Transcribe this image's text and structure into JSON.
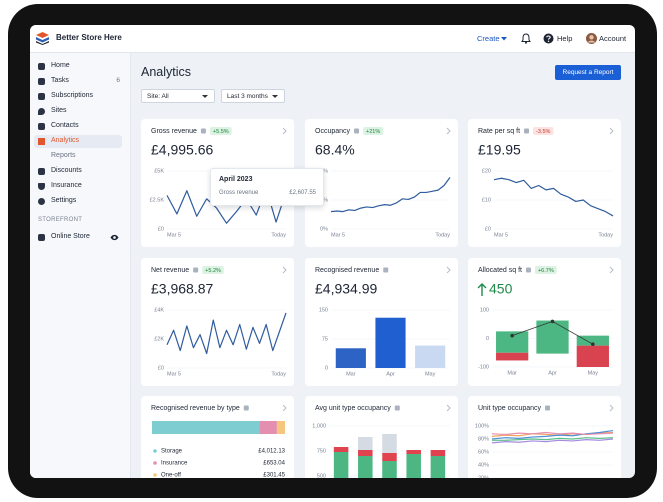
{
  "app": {
    "name": "Better Store Here"
  },
  "topbar": {
    "create": "Create",
    "help": "Help",
    "account": "Account"
  },
  "sidebar": {
    "items": [
      {
        "label": "Home"
      },
      {
        "label": "Tasks",
        "count": 6
      },
      {
        "label": "Subscriptions"
      },
      {
        "label": "Sites"
      },
      {
        "label": "Contacts"
      },
      {
        "label": "Analytics"
      },
      {
        "label": "Reports"
      },
      {
        "label": "Discounts"
      },
      {
        "label": "Insurance"
      },
      {
        "label": "Settings"
      }
    ],
    "section": "STOREFRONT",
    "storefront_item": "Online Store"
  },
  "page": {
    "title": "Analytics",
    "button": "Request a Report",
    "filters": [
      "Site: All",
      "Last 3 months"
    ]
  },
  "tooltip": {
    "title": "April 2023",
    "label": "Gross revenue",
    "value": "£2,607.55"
  },
  "cards": [
    {
      "title": "Gross revenue",
      "badge": {
        "text": "+5.5%",
        "tone": "up"
      },
      "value": "£4,995.66",
      "chart": {
        "type": "line",
        "color": "#2f5c9e",
        "ylim": [
          0,
          5000
        ],
        "yticks": [
          {
            "value": 0,
            "label": "£0"
          },
          {
            "value": 2500,
            "label": "£2.5K"
          },
          {
            "value": 5000,
            "label": "£5K"
          }
        ],
        "x_labels": [
          "Mar 5",
          "Today"
        ],
        "values": [
          2900,
          1300,
          3300,
          1100,
          2600,
          1800,
          500,
          1500,
          2600,
          1200,
          3500,
          600,
          3200
        ]
      }
    },
    {
      "title": "Occupancy",
      "badge": {
        "text": "+21%",
        "tone": "up"
      },
      "value": "68.4%",
      "chart": {
        "type": "line",
        "color": "#2f5c9e",
        "ylim": [
          0,
          100
        ],
        "yticks": [
          {
            "value": 0,
            "label": "0%"
          },
          {
            "value": 50,
            "label": "50%"
          },
          {
            "value": 100,
            "label": "100%"
          }
        ],
        "x_labels": [
          "Mar 5",
          "Today"
        ],
        "values": [
          30,
          31,
          30,
          33,
          32,
          36,
          38,
          37,
          40,
          42,
          41,
          45,
          52,
          51,
          55,
          63,
          63,
          65,
          67,
          75,
          89
        ]
      }
    },
    {
      "title": "Rate per sq ft",
      "badge": {
        "text": "-3.5%",
        "tone": "down"
      },
      "value": "£19.95",
      "chart": {
        "type": "line",
        "color": "#2f5c9e",
        "ylim": [
          0,
          20
        ],
        "yticks": [
          {
            "value": 0,
            "label": "£0"
          },
          {
            "value": 10,
            "label": "£10"
          },
          {
            "value": 20,
            "label": "£20"
          }
        ],
        "x_labels": [
          "Mar 5",
          "Today"
        ],
        "values": [
          17,
          17.5,
          17,
          16,
          16.8,
          14,
          15,
          13.5,
          14,
          12,
          11,
          9.5,
          10,
          8,
          7,
          6,
          4.5
        ]
      }
    },
    {
      "title": "Net revenue",
      "badge": {
        "text": "+5.2%",
        "tone": "up"
      },
      "value": "£3,968.87",
      "chart": {
        "type": "line",
        "color": "#2f5c9e",
        "ylim": [
          0,
          4000
        ],
        "yticks": [
          {
            "value": 0,
            "label": "£0"
          },
          {
            "value": 2000,
            "label": "£2K"
          },
          {
            "value": 4000,
            "label": "£4K"
          }
        ],
        "x_labels": [
          "Mar 5",
          "Today"
        ],
        "values": [
          1600,
          2600,
          1200,
          2900,
          1400,
          2300,
          1000,
          3300,
          1400,
          2600,
          1600,
          3000,
          1300,
          2800,
          1700,
          3000,
          1200,
          2500,
          3800
        ]
      }
    },
    {
      "title": "Recognised revenue",
      "value": "£4,934.99",
      "chart": {
        "type": "bar",
        "ylim": [
          0,
          150
        ],
        "yticks": [
          0,
          75,
          150
        ],
        "categories": [
          "Mar",
          "Apr",
          "May"
        ],
        "values": [
          51,
          130,
          58
        ],
        "colors": [
          "#2d63c4",
          "#1f5fd0",
          "#c9d9f1"
        ]
      }
    },
    {
      "title": "Allocated sq ft",
      "badge": {
        "text": "+6.7%",
        "tone": "up"
      },
      "value": "450",
      "trend": "up",
      "value_color": "#1f8a4c",
      "chart": {
        "type": "waterfall",
        "ylim": [
          -100,
          100
        ],
        "yticks": [
          -100,
          0,
          100
        ],
        "categories": [
          "Mar",
          "Apr",
          "May"
        ],
        "series": [
          {
            "color": "#4cb782",
            "low": [
              -50,
              -53,
              -25
            ],
            "high": [
              25,
              63,
              10
            ]
          },
          {
            "color": "#d8434f",
            "low": [
              -77,
              null,
              -100
            ],
            "high": [
              -50,
              null,
              -25
            ]
          }
        ],
        "line": {
          "color": "#333333",
          "values": [
            10,
            60,
            -20
          ]
        }
      }
    },
    {
      "title": "Recognised revenue by type",
      "chart": {
        "type": "hbar_stack",
        "names": [
          "Storage",
          "Insurance",
          "One-off"
        ],
        "values": [
          4012.13,
          653.04,
          301.45
        ],
        "value_labels": [
          "£4,012.13",
          "£653.04",
          "£301.45"
        ],
        "colors": [
          "#7ecdd1",
          "#e58fb0",
          "#f5c77e"
        ]
      }
    },
    {
      "title": "Avg unit type occupancy",
      "chart": {
        "type": "stacked_bar",
        "ylim": [
          0,
          1000
        ],
        "yticks": [
          {
            "value": 1000,
            "label": "1,000"
          },
          750,
          500
        ],
        "series": [
          {
            "color": "#4cb782",
            "values": [
              740,
              700,
              650,
              720,
              700
            ]
          },
          {
            "color": "#e0434f",
            "values": [
              50,
              60,
              80,
              40,
              60
            ]
          },
          {
            "color": "#d5dbe3",
            "values": [
              0,
              130,
              190,
              0,
              0
            ]
          }
        ]
      }
    },
    {
      "title": "Unit type occupancy",
      "chart": {
        "type": "multiline",
        "ylim": [
          0,
          100
        ],
        "yticks": [
          {
            "value": 100,
            "label": "100%"
          },
          {
            "value": 80,
            "label": "80%"
          },
          {
            "value": 60,
            "label": "60%"
          },
          {
            "value": 40,
            "label": "40%"
          },
          {
            "value": 20,
            "label": "20%"
          }
        ],
        "series": [
          {
            "color": "#f0a35e",
            "values": [
              84,
              86,
              85,
              88,
              87,
              86,
              88,
              87,
              89,
              90
            ]
          },
          {
            "color": "#4d8fd6",
            "values": [
              80,
              82,
              81,
              83,
              84,
              86,
              85,
              88,
              90,
              93
            ]
          },
          {
            "color": "#5cbf8a",
            "values": [
              78,
              78,
              79,
              80,
              79,
              81,
              80,
              82,
              81,
              82
            ]
          },
          {
            "color": "#e58fb0",
            "values": [
              88,
              87,
              89,
              88,
              90,
              88,
              89,
              87,
              88,
              89
            ]
          },
          {
            "color": "#a58be0",
            "values": [
              74,
              76,
              75,
              77,
              76,
              78,
              77,
              79,
              78,
              80
            ]
          }
        ]
      }
    }
  ]
}
